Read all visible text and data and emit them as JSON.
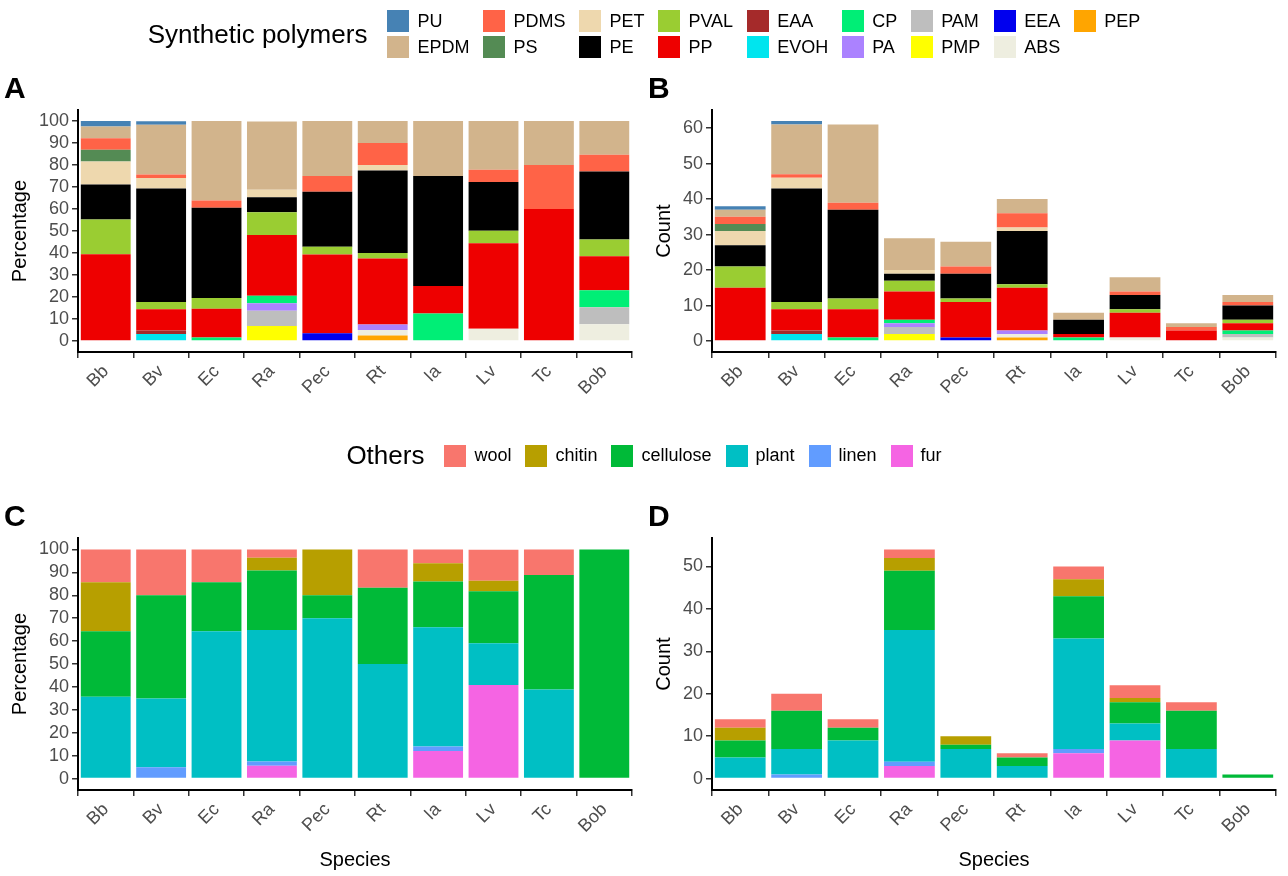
{
  "chart_data": [
    {
      "type": "bar",
      "title": "A",
      "ylabel": "Percentage",
      "legend_title": "Synthetic polymers",
      "legend": "top",
      "stacked": true,
      "grid": false,
      "categories": [
        "Bb",
        "Bv",
        "Ec",
        "Ra",
        "Pec",
        "Rt",
        "Ia",
        "Lv",
        "Tc",
        "Bob"
      ],
      "ylim": [
        -5,
        105
      ],
      "yticks": [
        0,
        10,
        20,
        30,
        40,
        50,
        60,
        70,
        80,
        90,
        100
      ],
      "series": [
        {
          "name": "PEP",
          "color": "#ffa500",
          "values": [
            0,
            0,
            0,
            0,
            0,
            2.5,
            0,
            0,
            0,
            0
          ]
        },
        {
          "name": "ABS",
          "color": "#eeeee0",
          "values": [
            0,
            0,
            0,
            0,
            0,
            2.5,
            0,
            5.6,
            0,
            7.7
          ]
        },
        {
          "name": "EEA",
          "color": "#0000ee",
          "values": [
            0,
            0,
            0,
            0,
            3.6,
            0,
            0,
            0,
            0,
            0
          ]
        },
        {
          "name": "PMP",
          "color": "#ffff00",
          "values": [
            0,
            0,
            0,
            6.9,
            0,
            0,
            0,
            0,
            0,
            0
          ]
        },
        {
          "name": "PAM",
          "color": "#bebebe",
          "values": [
            0,
            0,
            0,
            6.9,
            0,
            0,
            0,
            0,
            0,
            7.7
          ]
        },
        {
          "name": "PA",
          "color": "#ab82ff",
          "values": [
            0,
            0,
            0,
            3.4,
            0,
            2.5,
            0,
            0,
            0,
            0
          ]
        },
        {
          "name": "CP",
          "color": "#00ee76",
          "values": [
            0,
            0,
            1.6,
            3.4,
            0,
            0,
            12.5,
            0,
            0,
            7.7
          ]
        },
        {
          "name": "EVOH",
          "color": "#00e5ee",
          "values": [
            0,
            3.2,
            0,
            0,
            0,
            0,
            0,
            0,
            0,
            0
          ]
        },
        {
          "name": "EAA",
          "color": "#a52a2a",
          "values": [
            0,
            1.6,
            0,
            0,
            0,
            0,
            0,
            0,
            0,
            0
          ]
        },
        {
          "name": "PP",
          "color": "#ee0000",
          "values": [
            39.5,
            9.7,
            13.1,
            27.6,
            35.7,
            30,
            12.5,
            38.9,
            60,
            15.4
          ]
        },
        {
          "name": "PVAL",
          "color": "#9acd32",
          "values": [
            15.8,
            3.2,
            4.9,
            10.3,
            3.6,
            2.5,
            0,
            5.6,
            0,
            7.7
          ]
        },
        {
          "name": "PE",
          "color": "#000000",
          "values": [
            15.8,
            51.6,
            41.0,
            6.9,
            25.0,
            37.5,
            50,
            22.2,
            0,
            30.8
          ]
        },
        {
          "name": "PET",
          "color": "#eed8ae",
          "values": [
            10.5,
            4.8,
            0,
            3.4,
            0,
            2.5,
            0,
            0,
            0,
            0
          ]
        },
        {
          "name": "PS",
          "color": "#548b54",
          "values": [
            5.3,
            0,
            0,
            0,
            0,
            0,
            0,
            0,
            0,
            0
          ]
        },
        {
          "name": "PDMS",
          "color": "#ff6347",
          "values": [
            5.3,
            1.6,
            3.3,
            0,
            7.1,
            10,
            0,
            5.6,
            20,
            7.7
          ]
        },
        {
          "name": "EPDM",
          "color": "#d2b48c",
          "values": [
            5.3,
            22.6,
            36.1,
            31.0,
            25.0,
            10,
            25,
            22.1,
            20,
            15.3
          ]
        },
        {
          "name": "PU",
          "color": "#4682b4",
          "values": [
            2.5,
            1.6,
            0,
            0,
            0,
            0,
            0,
            0,
            0,
            0
          ]
        }
      ]
    },
    {
      "type": "bar",
      "title": "B",
      "ylabel": "Count",
      "stacked": true,
      "grid": false,
      "categories": [
        "Bb",
        "Bv",
        "Ec",
        "Ra",
        "Pec",
        "Rt",
        "Ia",
        "Lv",
        "Tc",
        "Bob"
      ],
      "ylim": [
        -3.1,
        65.1
      ],
      "yticks": [
        0,
        10,
        20,
        30,
        40,
        50,
        60
      ],
      "series": [
        {
          "color": "#ffa500",
          "values": [
            0,
            0,
            0,
            0,
            0,
            1,
            0,
            0,
            0,
            0
          ]
        },
        {
          "color": "#eeeee0",
          "values": [
            0,
            0,
            0,
            0,
            0,
            1,
            0,
            1,
            0,
            1
          ]
        },
        {
          "color": "#0000ee",
          "values": [
            0,
            0,
            0,
            0,
            1,
            0,
            0,
            0,
            0,
            0
          ]
        },
        {
          "color": "#ffff00",
          "values": [
            0,
            0,
            0,
            2,
            0,
            0,
            0,
            0,
            0,
            0
          ]
        },
        {
          "color": "#bebebe",
          "values": [
            0,
            0,
            0,
            2,
            0,
            0,
            0,
            0,
            0,
            1
          ]
        },
        {
          "color": "#ab82ff",
          "values": [
            0,
            0,
            0,
            1,
            0,
            1,
            0,
            0,
            0,
            0
          ]
        },
        {
          "color": "#00ee76",
          "values": [
            0,
            0,
            1,
            1,
            0,
            0,
            1,
            0,
            0,
            1
          ]
        },
        {
          "color": "#00e5ee",
          "values": [
            0,
            2,
            0,
            0,
            0,
            0,
            0,
            0,
            0,
            0
          ]
        },
        {
          "color": "#a52a2a",
          "values": [
            0,
            1,
            0,
            0,
            0,
            0,
            0,
            0,
            0,
            0
          ]
        },
        {
          "color": "#ee0000",
          "values": [
            15,
            6,
            8,
            8,
            10,
            12,
            1,
            7,
            3,
            2
          ]
        },
        {
          "color": "#9acd32",
          "values": [
            6,
            2,
            3,
            3,
            1,
            1,
            0,
            1,
            0,
            1
          ]
        },
        {
          "color": "#000000",
          "values": [
            6,
            32,
            25,
            2,
            7,
            15,
            4,
            4,
            0,
            4
          ]
        },
        {
          "color": "#eed8ae",
          "values": [
            4,
            3,
            0,
            1,
            0,
            1,
            0,
            0,
            0,
            0
          ]
        },
        {
          "color": "#548b54",
          "values": [
            2,
            0,
            0,
            0,
            0,
            0,
            0,
            0,
            0,
            0
          ]
        },
        {
          "color": "#ff6347",
          "values": [
            2,
            1,
            2,
            0,
            2,
            4,
            0,
            1,
            1,
            1
          ]
        },
        {
          "color": "#d2b48c",
          "values": [
            2,
            14,
            22,
            9,
            7,
            4,
            2,
            4,
            1,
            2
          ]
        },
        {
          "color": "#4682b4",
          "values": [
            1,
            1,
            0,
            0,
            0,
            0,
            0,
            0,
            0,
            0
          ]
        }
      ]
    },
    {
      "type": "bar",
      "title": "C",
      "xlabel": "Species",
      "ylabel": "Percentage",
      "legend_title": "Others",
      "legend": "top",
      "stacked": true,
      "grid": false,
      "categories": [
        "Bb",
        "Bv",
        "Ec",
        "Ra",
        "Pec",
        "Rt",
        "Ia",
        "Lv",
        "Tc",
        "Bob"
      ],
      "ylim": [
        -5,
        105
      ],
      "yticks": [
        0,
        10,
        20,
        30,
        40,
        50,
        60,
        70,
        80,
        90,
        100
      ],
      "series": [
        {
          "name": "fur",
          "color": "#f564e3",
          "values": [
            0,
            0,
            0,
            5.6,
            0,
            0,
            12,
            40.9,
            0,
            0
          ]
        },
        {
          "name": "linen",
          "color": "#619cff",
          "values": [
            0,
            5,
            0,
            1.9,
            0,
            0,
            2,
            0,
            0,
            0
          ]
        },
        {
          "name": "plant",
          "color": "#00bfc4",
          "values": [
            35.7,
            30,
            64.3,
            57.4,
            70,
            50,
            52,
            18.2,
            38.9,
            0
          ]
        },
        {
          "name": "cellulose",
          "color": "#00ba38",
          "values": [
            28.6,
            45,
            21.4,
            25.9,
            10,
            33.3,
            20,
            22.7,
            50,
            100
          ]
        },
        {
          "name": "chitin",
          "color": "#b79f00",
          "values": [
            21.4,
            0,
            0,
            5.6,
            20,
            0,
            8,
            4.5,
            0,
            0
          ]
        },
        {
          "name": "wool",
          "color": "#f8766d",
          "values": [
            14.3,
            20,
            14.3,
            3.6,
            0,
            16.7,
            6,
            13.6,
            11.1,
            0
          ]
        }
      ]
    },
    {
      "type": "bar",
      "title": "D",
      "xlabel": "Species",
      "ylabel": "Count",
      "stacked": true,
      "grid": false,
      "categories": [
        "Bb",
        "Bv",
        "Ec",
        "Ra",
        "Pec",
        "Rt",
        "Ia",
        "Lv",
        "Tc",
        "Bob"
      ],
      "ylim": [
        -2.7,
        56.7
      ],
      "yticks": [
        0,
        10,
        20,
        30,
        40,
        50
      ],
      "series": [
        {
          "color": "#f564e3",
          "values": [
            0,
            0,
            0,
            3,
            0,
            0,
            6,
            9,
            0,
            0
          ]
        },
        {
          "color": "#619cff",
          "values": [
            0,
            1,
            0,
            1,
            0,
            0,
            1,
            0,
            0,
            0
          ]
        },
        {
          "color": "#00bfc4",
          "values": [
            5,
            6,
            9,
            31,
            7,
            3,
            26,
            4,
            7,
            0
          ]
        },
        {
          "color": "#00ba38",
          "values": [
            4,
            9,
            3,
            14,
            1,
            2,
            10,
            5,
            9,
            1
          ]
        },
        {
          "color": "#b79f00",
          "values": [
            3,
            0,
            0,
            3,
            2,
            0,
            4,
            1,
            0,
            0
          ]
        },
        {
          "color": "#f8766d",
          "values": [
            2,
            4,
            2,
            2,
            0,
            1,
            3,
            3,
            2,
            0
          ]
        }
      ]
    }
  ]
}
